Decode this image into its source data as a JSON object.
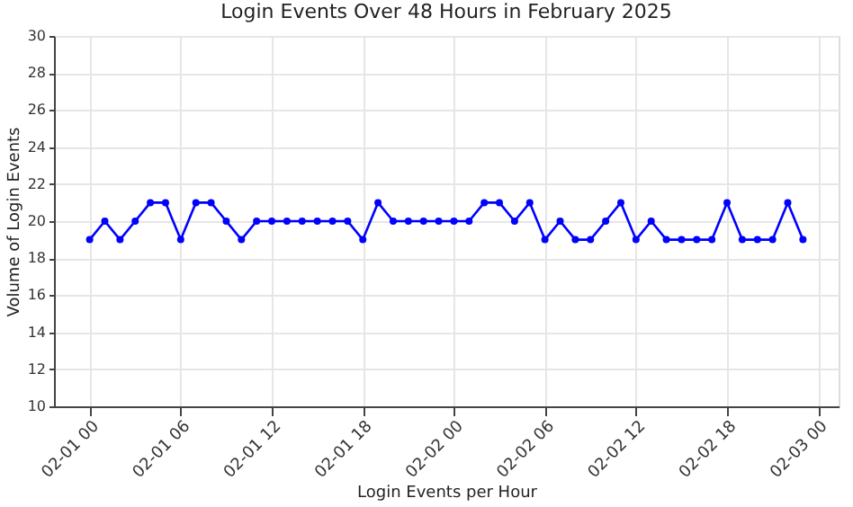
{
  "chart_data": {
    "type": "line",
    "title": "Login Events Over 48 Hours in February 2025",
    "xlabel": "Login Events per Hour",
    "ylabel": "Volume of Login Events",
    "x": [
      "2025-02-01T00:00",
      "2025-02-01T01:00",
      "2025-02-01T02:00",
      "2025-02-01T03:00",
      "2025-02-01T04:00",
      "2025-02-01T05:00",
      "2025-02-01T06:00",
      "2025-02-01T07:00",
      "2025-02-01T08:00",
      "2025-02-01T09:00",
      "2025-02-01T10:00",
      "2025-02-01T11:00",
      "2025-02-01T12:00",
      "2025-02-01T13:00",
      "2025-02-01T14:00",
      "2025-02-01T15:00",
      "2025-02-01T16:00",
      "2025-02-01T17:00",
      "2025-02-01T18:00",
      "2025-02-01T19:00",
      "2025-02-01T20:00",
      "2025-02-01T21:00",
      "2025-02-01T22:00",
      "2025-02-01T23:00",
      "2025-02-02T00:00",
      "2025-02-02T01:00",
      "2025-02-02T02:00",
      "2025-02-02T03:00",
      "2025-02-02T04:00",
      "2025-02-02T05:00",
      "2025-02-02T06:00",
      "2025-02-02T07:00",
      "2025-02-02T08:00",
      "2025-02-02T09:00",
      "2025-02-02T10:00",
      "2025-02-02T11:00",
      "2025-02-02T12:00",
      "2025-02-02T13:00",
      "2025-02-02T14:00",
      "2025-02-02T15:00",
      "2025-02-02T16:00",
      "2025-02-02T17:00",
      "2025-02-02T18:00",
      "2025-02-02T19:00",
      "2025-02-02T20:00",
      "2025-02-02T21:00",
      "2025-02-02T22:00",
      "2025-02-02T23:00"
    ],
    "series": [
      {
        "color": "#0000ff",
        "values": [
          19,
          20,
          19,
          20,
          21,
          21,
          19,
          21,
          21,
          20,
          19,
          20,
          20,
          20,
          20,
          20,
          20,
          20,
          19,
          21,
          20,
          20,
          20,
          20,
          20,
          20,
          21,
          21,
          20,
          21,
          19,
          20,
          19,
          19,
          20,
          21,
          19,
          20,
          19,
          19,
          19,
          19,
          21,
          19,
          19,
          19,
          21,
          19
        ]
      }
    ],
    "xlim": [
      "2025-01-31T21:39",
      "2025-02-03T01:21"
    ],
    "xticks": [
      {
        "value": "2025-02-01T00:00",
        "label": "02-01 00"
      },
      {
        "value": "2025-02-01T06:00",
        "label": "02-01 06"
      },
      {
        "value": "2025-02-01T12:00",
        "label": "02-01 12"
      },
      {
        "value": "2025-02-01T18:00",
        "label": "02-01 18"
      },
      {
        "value": "2025-02-02T00:00",
        "label": "02-02 00"
      },
      {
        "value": "2025-02-02T06:00",
        "label": "02-02 06"
      },
      {
        "value": "2025-02-02T12:00",
        "label": "02-02 12"
      },
      {
        "value": "2025-02-02T18:00",
        "label": "02-02 18"
      },
      {
        "value": "2025-02-03T00:00",
        "label": "02-03 00"
      }
    ],
    "ylim": [
      10,
      30
    ],
    "yticks": [
      10,
      12,
      14,
      16,
      18,
      20,
      22,
      24,
      26,
      28,
      30
    ],
    "grid": true,
    "marker": "circle",
    "line_style": "solid"
  }
}
